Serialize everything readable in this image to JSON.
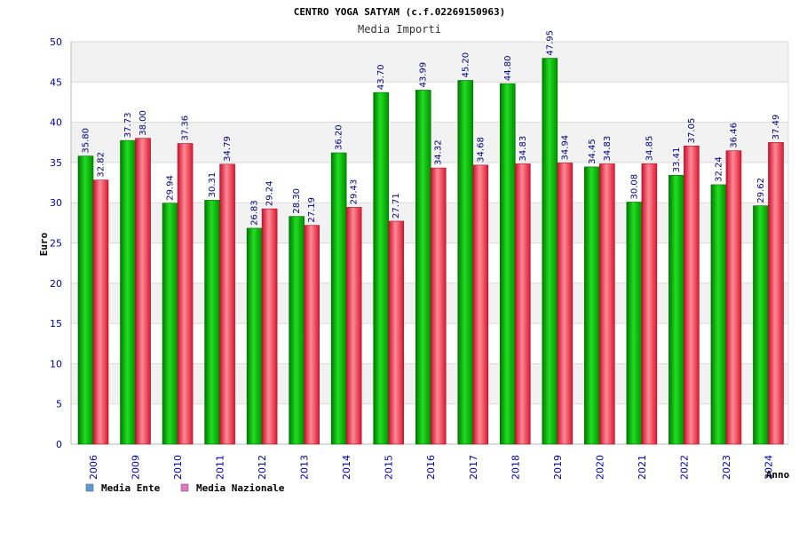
{
  "chart_data": {
    "type": "bar",
    "title": "CENTRO YOGA SATYAM (c.f.02269150963)",
    "subtitle": "Media Importi",
    "xlabel": "Anno",
    "ylabel": "Euro",
    "ylim": [
      0,
      50
    ],
    "yticks": [
      0,
      5,
      10,
      15,
      20,
      25,
      30,
      35,
      40,
      45,
      50
    ],
    "grid": true,
    "legend_position": "bottom-left",
    "categories": [
      "2006",
      "2009",
      "2010",
      "2011",
      "2012",
      "2013",
      "2014",
      "2015",
      "2016",
      "2017",
      "2018",
      "2019",
      "2020",
      "2021",
      "2022",
      "2023",
      "2024"
    ],
    "series": [
      {
        "name": "Media Ente",
        "legend_color": "#5b9bd5",
        "bar_color": "#00b000",
        "values": [
          35.8,
          37.73,
          29.94,
          30.31,
          26.83,
          28.3,
          36.2,
          43.7,
          43.99,
          45.2,
          44.8,
          47.95,
          34.45,
          30.08,
          33.41,
          32.24,
          29.62
        ],
        "labels": [
          "35.80",
          "37.73",
          "29.94",
          "30.31",
          "26.83",
          "28.30",
          "36.20",
          "43.70",
          "43.99",
          "45.20",
          "44.80",
          "47.95",
          "34.45",
          "30.08",
          "33.41",
          "32.24",
          "29.62"
        ]
      },
      {
        "name": "Media Nazionale",
        "legend_color": "#e377c2",
        "bar_color": "#e8283c",
        "values": [
          32.82,
          38.0,
          37.36,
          34.79,
          29.24,
          27.19,
          29.43,
          27.71,
          34.32,
          34.68,
          34.83,
          34.94,
          34.83,
          34.85,
          37.05,
          36.46,
          37.49
        ],
        "labels": [
          "32.82",
          "38.00",
          "37.36",
          "34.79",
          "29.24",
          "27.19",
          "29.43",
          "27.71",
          "34.32",
          "34.68",
          "34.83",
          "34.94",
          "34.83",
          "34.85",
          "37.05",
          "36.46",
          "37.49"
        ]
      }
    ]
  }
}
